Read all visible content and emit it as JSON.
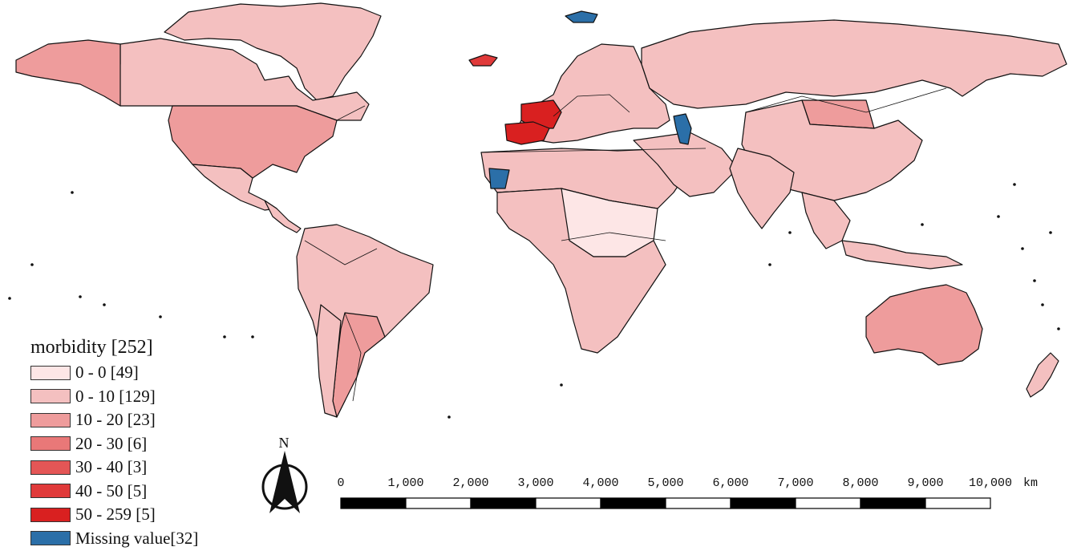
{
  "legend": {
    "title": "morbidity [252]",
    "classes": [
      {
        "label": "0 - 0 [49]",
        "color": "#fde6e6"
      },
      {
        "label": "0 - 10 [129]",
        "color": "#f4c0c0"
      },
      {
        "label": "10 - 20 [23]",
        "color": "#ee9c9c"
      },
      {
        "label": "20 - 30 [6]",
        "color": "#e97878"
      },
      {
        "label": "30 - 40 [3]",
        "color": "#e45656"
      },
      {
        "label": "40 - 50 [5]",
        "color": "#e03a3a"
      },
      {
        "label": "50 - 259 [5]",
        "color": "#d92020"
      },
      {
        "label": "Missing value[32]",
        "color": "#2b6fa8"
      }
    ]
  },
  "north_arrow": {
    "label": "N"
  },
  "scale_bar": {
    "ticks": [
      "0",
      "1,000",
      "2,000",
      "3,000",
      "4,000",
      "5,000",
      "6,000",
      "7,000",
      "8,000",
      "9,000",
      "10,000"
    ],
    "unit": "km"
  },
  "regions": [
    {
      "name": "greenland",
      "class": 1
    },
    {
      "name": "canada",
      "class": 1
    },
    {
      "name": "alaska",
      "class": 2
    },
    {
      "name": "usa",
      "class": 2
    },
    {
      "name": "mexico",
      "class": 1
    },
    {
      "name": "central-america",
      "class": 1
    },
    {
      "name": "south-america",
      "class": 1
    },
    {
      "name": "argentina",
      "class": 2
    },
    {
      "name": "chile",
      "class": 1
    },
    {
      "name": "iceland",
      "class": 5
    },
    {
      "name": "europe",
      "class": 1
    },
    {
      "name": "france",
      "class": 6
    },
    {
      "name": "spain",
      "class": 6
    },
    {
      "name": "russia",
      "class": 1
    },
    {
      "name": "mongolia",
      "class": 2
    },
    {
      "name": "china",
      "class": 1
    },
    {
      "name": "north-africa",
      "class": 1
    },
    {
      "name": "central-africa",
      "class": 0
    },
    {
      "name": "southern-africa",
      "class": 1
    },
    {
      "name": "middle-east",
      "class": 1
    },
    {
      "name": "india",
      "class": 1
    },
    {
      "name": "southeast-asia",
      "class": 1
    },
    {
      "name": "australia",
      "class": 2
    },
    {
      "name": "new-zealand",
      "class": 1
    },
    {
      "name": "western-sahara",
      "class": 7
    },
    {
      "name": "caspian-sea",
      "class": 7
    },
    {
      "name": "svalbard",
      "class": 7
    }
  ]
}
